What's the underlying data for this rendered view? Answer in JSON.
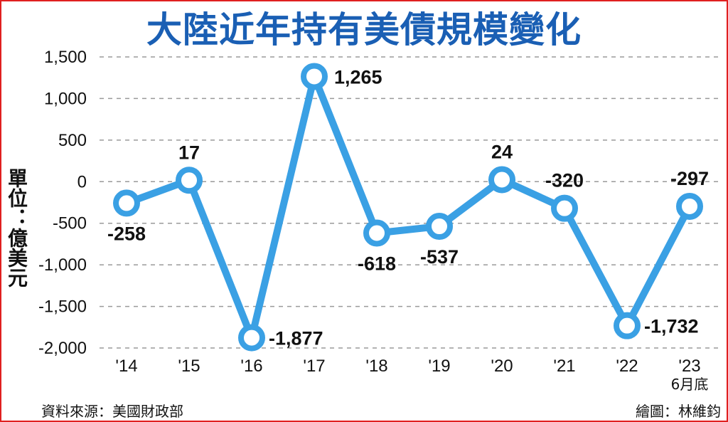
{
  "title": "大陸近年持有美債規模變化",
  "unit_label": "單位：億美元",
  "source": "資料來源：美國財政部",
  "credit": "繪圖：林維鈞",
  "colors": {
    "line": "#3aa0e4",
    "title": "#1a5fb4",
    "frame": "#e02020",
    "grid": "#9a9a9a"
  },
  "chart_data": {
    "type": "line",
    "title": "大陸近年持有美債規模變化",
    "ylabel": "單位：億美元",
    "xlabel": "",
    "categories": [
      "'14",
      "'15",
      "'16",
      "'17",
      "'18",
      "'19",
      "'20",
      "'21",
      "'22",
      "'23"
    ],
    "category_notes": [
      "",
      "",
      "",
      "",
      "",
      "",
      "",
      "",
      "",
      "6月底"
    ],
    "values": [
      -258,
      17,
      -1877,
      1265,
      -618,
      -537,
      24,
      -320,
      -1732,
      -297
    ],
    "value_labels": [
      "-258",
      "17",
      "-1,877",
      "1,265",
      "-618",
      "-537",
      "24",
      "-320",
      "-1,732",
      "-297"
    ],
    "ylim": [
      -2000,
      1500
    ],
    "yticks": [
      1500,
      1000,
      500,
      0,
      -500,
      -1000,
      -1500,
      -2000
    ],
    "ytick_labels": [
      "1,500",
      "1,000",
      "500",
      "0",
      "-500",
      "-1,000",
      "-1,500",
      "-2,000"
    ],
    "grid": true,
    "grid_style": "dashed"
  }
}
